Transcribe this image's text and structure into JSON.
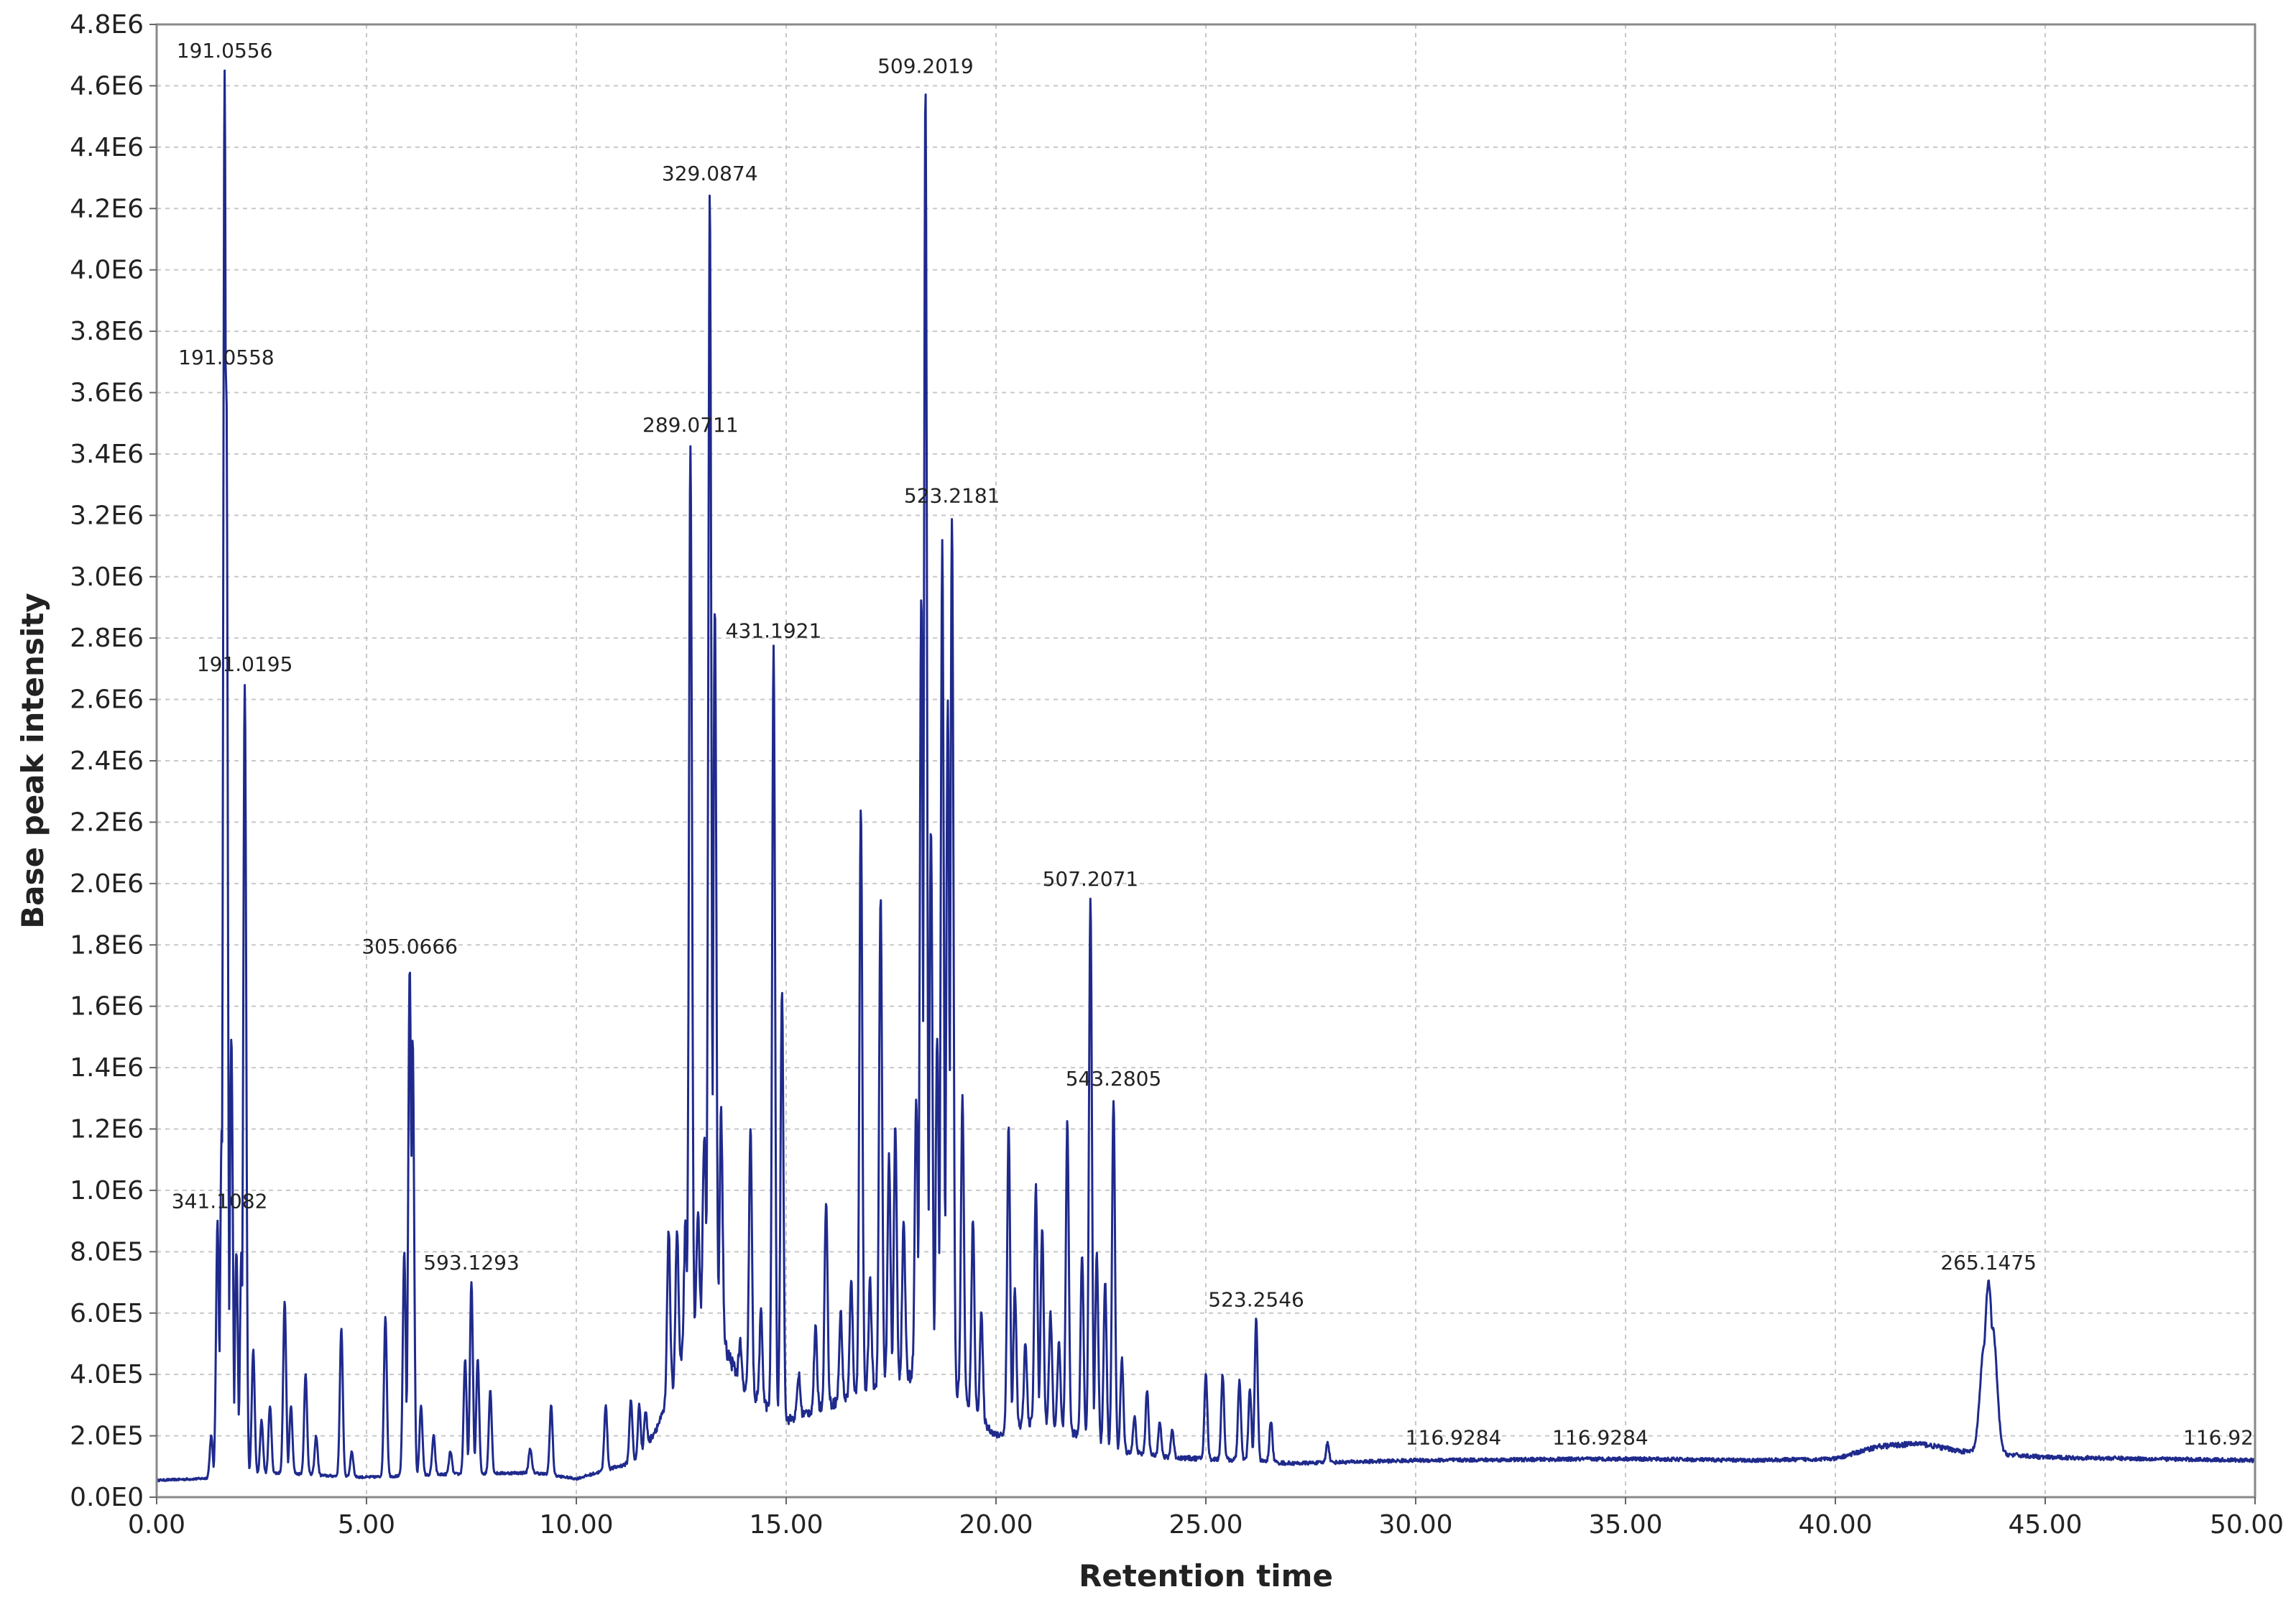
{
  "chart_data": {
    "type": "line",
    "title": "",
    "xlabel": "Retention time",
    "ylabel": "Base peak intensity",
    "xlim": [
      0,
      50
    ],
    "ylim": [
      0,
      4800000
    ],
    "grid": true,
    "legend": "none",
    "colors": {
      "trace": "#1f2a8c",
      "grid": "#c8c8c8",
      "frame": "#888888"
    },
    "x_ticks": [
      {
        "value": 0,
        "label": "0.00"
      },
      {
        "value": 5,
        "label": "5.00"
      },
      {
        "value": 10,
        "label": "10.00"
      },
      {
        "value": 15,
        "label": "15.00"
      },
      {
        "value": 20,
        "label": "20.00"
      },
      {
        "value": 25,
        "label": "25.00"
      },
      {
        "value": 30,
        "label": "30.00"
      },
      {
        "value": 35,
        "label": "35.00"
      },
      {
        "value": 40,
        "label": "40.00"
      },
      {
        "value": 45,
        "label": "45.00"
      },
      {
        "value": 50,
        "label": "50.00"
      }
    ],
    "y_ticks": [
      {
        "value": 0,
        "label": "0.0E0"
      },
      {
        "value": 200000,
        "label": "2.0E5"
      },
      {
        "value": 400000,
        "label": "4.0E5"
      },
      {
        "value": 600000,
        "label": "6.0E5"
      },
      {
        "value": 800000,
        "label": "8.0E5"
      },
      {
        "value": 1000000,
        "label": "1.0E6"
      },
      {
        "value": 1200000,
        "label": "1.2E6"
      },
      {
        "value": 1400000,
        "label": "1.4E6"
      },
      {
        "value": 1600000,
        "label": "1.6E6"
      },
      {
        "value": 1800000,
        "label": "1.8E6"
      },
      {
        "value": 2000000,
        "label": "2.0E6"
      },
      {
        "value": 2200000,
        "label": "2.2E6"
      },
      {
        "value": 2400000,
        "label": "2.4E6"
      },
      {
        "value": 2600000,
        "label": "2.6E6"
      },
      {
        "value": 2800000,
        "label": "2.8E6"
      },
      {
        "value": 3000000,
        "label": "3.0E6"
      },
      {
        "value": 3200000,
        "label": "3.2E6"
      },
      {
        "value": 3400000,
        "label": "3.4E6"
      },
      {
        "value": 3600000,
        "label": "3.6E6"
      },
      {
        "value": 3800000,
        "label": "3.8E6"
      },
      {
        "value": 4000000,
        "label": "4.0E6"
      },
      {
        "value": 4200000,
        "label": "4.2E6"
      },
      {
        "value": 4400000,
        "label": "4.4E6"
      },
      {
        "value": 4600000,
        "label": "4.6E6"
      },
      {
        "value": 4800000,
        "label": "4.8E6"
      }
    ],
    "baseline": [
      [
        0.0,
        55000
      ],
      [
        1.0,
        60000
      ],
      [
        2.0,
        70000
      ],
      [
        3.0,
        80000
      ],
      [
        4.0,
        70000
      ],
      [
        5.0,
        65000
      ],
      [
        7.0,
        75000
      ],
      [
        9.0,
        80000
      ],
      [
        10.0,
        60000
      ],
      [
        11.5,
        120000
      ],
      [
        12.0,
        250000
      ],
      [
        13.0,
        600000
      ],
      [
        13.5,
        500000
      ],
      [
        14.0,
        350000
      ],
      [
        15.0,
        250000
      ],
      [
        16.0,
        300000
      ],
      [
        17.0,
        350000
      ],
      [
        18.0,
        400000
      ],
      [
        19.0,
        350000
      ],
      [
        20.0,
        200000
      ],
      [
        21.0,
        250000
      ],
      [
        22.0,
        200000
      ],
      [
        23.0,
        150000
      ],
      [
        24.0,
        130000
      ],
      [
        26.0,
        120000
      ],
      [
        27.0,
        110000
      ],
      [
        30.0,
        120000
      ],
      [
        35.0,
        125000
      ],
      [
        38.0,
        120000
      ],
      [
        40.0,
        125000
      ],
      [
        41.0,
        165000
      ],
      [
        42.0,
        175000
      ],
      [
        43.0,
        150000
      ],
      [
        45.0,
        130000
      ],
      [
        50.0,
        120000
      ]
    ],
    "peaks": [
      {
        "x": 1.3,
        "y": 200000
      },
      {
        "x": 1.45,
        "y": 900000
      },
      {
        "x": 1.55,
        "y": 1200000
      },
      {
        "x": 1.62,
        "y": 4650000
      },
      {
        "x": 1.66,
        "y": 3650000
      },
      {
        "x": 1.78,
        "y": 1500000
      },
      {
        "x": 1.9,
        "y": 800000
      },
      {
        "x": 2.02,
        "y": 800000
      },
      {
        "x": 2.1,
        "y": 2650000
      },
      {
        "x": 2.3,
        "y": 480000
      },
      {
        "x": 2.5,
        "y": 250000
      },
      {
        "x": 2.7,
        "y": 300000
      },
      {
        "x": 3.05,
        "y": 640000
      },
      {
        "x": 3.2,
        "y": 300000
      },
      {
        "x": 3.55,
        "y": 400000
      },
      {
        "x": 3.8,
        "y": 200000
      },
      {
        "x": 4.4,
        "y": 550000
      },
      {
        "x": 4.65,
        "y": 150000
      },
      {
        "x": 5.45,
        "y": 590000
      },
      {
        "x": 5.9,
        "y": 800000
      },
      {
        "x": 6.03,
        "y": 1730000
      },
      {
        "x": 6.1,
        "y": 1500000
      },
      {
        "x": 6.3,
        "y": 300000
      },
      {
        "x": 6.6,
        "y": 200000
      },
      {
        "x": 7.0,
        "y": 150000
      },
      {
        "x": 7.35,
        "y": 450000
      },
      {
        "x": 7.5,
        "y": 700000
      },
      {
        "x": 7.65,
        "y": 450000
      },
      {
        "x": 7.95,
        "y": 350000
      },
      {
        "x": 8.9,
        "y": 160000
      },
      {
        "x": 9.4,
        "y": 300000
      },
      {
        "x": 10.7,
        "y": 300000
      },
      {
        "x": 11.3,
        "y": 320000
      },
      {
        "x": 11.5,
        "y": 300000
      },
      {
        "x": 11.65,
        "y": 280000
      },
      {
        "x": 12.2,
        "y": 880000
      },
      {
        "x": 12.4,
        "y": 870000
      },
      {
        "x": 12.6,
        "y": 880000
      },
      {
        "x": 12.72,
        "y": 3430000
      },
      {
        "x": 12.9,
        "y": 900000
      },
      {
        "x": 13.05,
        "y": 1200000
      },
      {
        "x": 13.18,
        "y": 4250000
      },
      {
        "x": 13.3,
        "y": 2900000
      },
      {
        "x": 13.45,
        "y": 1250000
      },
      {
        "x": 13.9,
        "y": 500000
      },
      {
        "x": 14.15,
        "y": 1200000
      },
      {
        "x": 14.4,
        "y": 600000
      },
      {
        "x": 14.7,
        "y": 2760000
      },
      {
        "x": 14.9,
        "y": 1660000
      },
      {
        "x": 15.3,
        "y": 400000
      },
      {
        "x": 15.7,
        "y": 550000
      },
      {
        "x": 15.95,
        "y": 970000
      },
      {
        "x": 16.3,
        "y": 600000
      },
      {
        "x": 16.55,
        "y": 700000
      },
      {
        "x": 16.78,
        "y": 2250000
      },
      {
        "x": 17.0,
        "y": 700000
      },
      {
        "x": 17.25,
        "y": 1950000
      },
      {
        "x": 17.45,
        "y": 1100000
      },
      {
        "x": 17.6,
        "y": 1200000
      },
      {
        "x": 17.8,
        "y": 900000
      },
      {
        "x": 18.1,
        "y": 1300000
      },
      {
        "x": 18.22,
        "y": 2950000
      },
      {
        "x": 18.32,
        "y": 4600000
      },
      {
        "x": 18.45,
        "y": 2200000
      },
      {
        "x": 18.6,
        "y": 1500000
      },
      {
        "x": 18.72,
        "y": 3100000
      },
      {
        "x": 18.85,
        "y": 2600000
      },
      {
        "x": 18.95,
        "y": 3200000
      },
      {
        "x": 19.2,
        "y": 1300000
      },
      {
        "x": 19.45,
        "y": 900000
      },
      {
        "x": 19.65,
        "y": 600000
      },
      {
        "x": 20.3,
        "y": 1210000
      },
      {
        "x": 20.45,
        "y": 680000
      },
      {
        "x": 20.7,
        "y": 500000
      },
      {
        "x": 20.95,
        "y": 1020000
      },
      {
        "x": 21.1,
        "y": 880000
      },
      {
        "x": 21.3,
        "y": 600000
      },
      {
        "x": 21.5,
        "y": 500000
      },
      {
        "x": 21.7,
        "y": 1220000
      },
      {
        "x": 22.05,
        "y": 800000
      },
      {
        "x": 22.25,
        "y": 1950000
      },
      {
        "x": 22.4,
        "y": 800000
      },
      {
        "x": 22.6,
        "y": 700000
      },
      {
        "x": 22.8,
        "y": 1300000
      },
      {
        "x": 23.0,
        "y": 450000
      },
      {
        "x": 23.3,
        "y": 260000
      },
      {
        "x": 23.6,
        "y": 350000
      },
      {
        "x": 23.9,
        "y": 250000
      },
      {
        "x": 24.2,
        "y": 220000
      },
      {
        "x": 25.0,
        "y": 400000
      },
      {
        "x": 25.4,
        "y": 400000
      },
      {
        "x": 25.8,
        "y": 380000
      },
      {
        "x": 26.05,
        "y": 350000
      },
      {
        "x": 26.2,
        "y": 580000
      },
      {
        "x": 26.55,
        "y": 250000
      },
      {
        "x": 27.9,
        "y": 180000
      },
      {
        "x": 43.55,
        "y": 500000
      },
      {
        "x": 43.65,
        "y": 700000
      },
      {
        "x": 43.75,
        "y": 550000
      }
    ],
    "annotations": [
      {
        "x": 1.62,
        "y": 4650000,
        "label": "191.0556"
      },
      {
        "x": 1.66,
        "y": 3650000,
        "label": "191.0558"
      },
      {
        "x": 2.1,
        "y": 2650000,
        "label": "191.0195"
      },
      {
        "x": 1.5,
        "y": 900000,
        "label": "341.1082"
      },
      {
        "x": 6.03,
        "y": 1730000,
        "label": "305.0666"
      },
      {
        "x": 7.5,
        "y": 700000,
        "label": "593.1293"
      },
      {
        "x": 12.72,
        "y": 3430000,
        "label": "289.0711"
      },
      {
        "x": 13.18,
        "y": 4250000,
        "label": "329.0874"
      },
      {
        "x": 14.7,
        "y": 2760000,
        "label": "431.1921"
      },
      {
        "x": 18.32,
        "y": 4600000,
        "label": "509.2019"
      },
      {
        "x": 18.95,
        "y": 3200000,
        "label": "523.2181"
      },
      {
        "x": 22.25,
        "y": 1950000,
        "label": "507.2071"
      },
      {
        "x": 22.8,
        "y": 1300000,
        "label": "543.2805"
      },
      {
        "x": 26.2,
        "y": 580000,
        "label": "523.2546"
      },
      {
        "x": 30.9,
        "y": 130000,
        "label": "116.9284"
      },
      {
        "x": 34.4,
        "y": 130000,
        "label": "116.9284"
      },
      {
        "x": 43.65,
        "y": 700000,
        "label": "265.1475"
      },
      {
        "x": 49.6,
        "y": 130000,
        "label": "116.92"
      }
    ]
  }
}
